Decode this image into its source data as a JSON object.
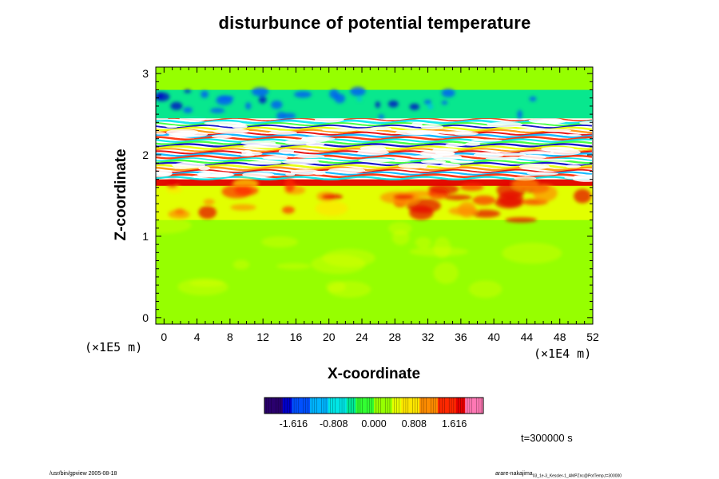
{
  "chart_data": {
    "type": "heatmap",
    "title": "disturbunce of potential temperature",
    "xlabel": "X-coordinate",
    "ylabel": "Z-coordinate",
    "x_unit_note": "(×1E4 m)",
    "y_unit_note": "(×1E5 m)",
    "xlim": [
      -1,
      52
    ],
    "ylim": [
      -0.08,
      3.08
    ],
    "x_ticks": [
      0,
      4,
      8,
      12,
      16,
      20,
      24,
      28,
      32,
      36,
      40,
      44,
      48,
      52
    ],
    "y_ticks": [
      0,
      1,
      2,
      3
    ],
    "colorbar": {
      "ticks": [
        "-1.616",
        "-0.808",
        "0.000",
        "0.808",
        "1.616"
      ],
      "tick_values": [
        -1.616,
        -0.808,
        0.0,
        0.808,
        1.616
      ],
      "range": [
        -2.2,
        2.2
      ],
      "colors": [
        "#2a006e",
        "#0000c8",
        "#0050ff",
        "#00b4ff",
        "#00e6e6",
        "#00e696",
        "#32ff32",
        "#96ff00",
        "#e6ff00",
        "#ffe600",
        "#ff8c00",
        "#ff2800",
        "#e60000",
        "#ff78b4"
      ]
    },
    "field_description_values": {
      "background_value": 0.15,
      "bands": [
        {
          "z_min": 0.0,
          "z_max": 0.6,
          "value": 0.2
        },
        {
          "z_min": 0.6,
          "z_max": 1.2,
          "value": 0.25
        },
        {
          "z_min": 1.2,
          "z_max": 1.62,
          "value": 0.6
        },
        {
          "z_min": 1.62,
          "z_max": 1.7,
          "value": 1.7
        },
        {
          "z_min": 1.7,
          "z_max": 2.45,
          "value": "saturated"
        },
        {
          "z_min": 2.45,
          "z_max": 2.8,
          "value": -0.5
        },
        {
          "z_min": 2.8,
          "z_max": 3.08,
          "value": 0.1
        }
      ]
    },
    "time_label": "t=300000 s"
  },
  "footer": {
    "left": "/usr/bin/gpview 2005-08-18",
    "right_main": "arare-nakajima",
    "right_sub": "03_1e-3_Kessler-1_AMPZnc@PotTemp,t=300000"
  }
}
